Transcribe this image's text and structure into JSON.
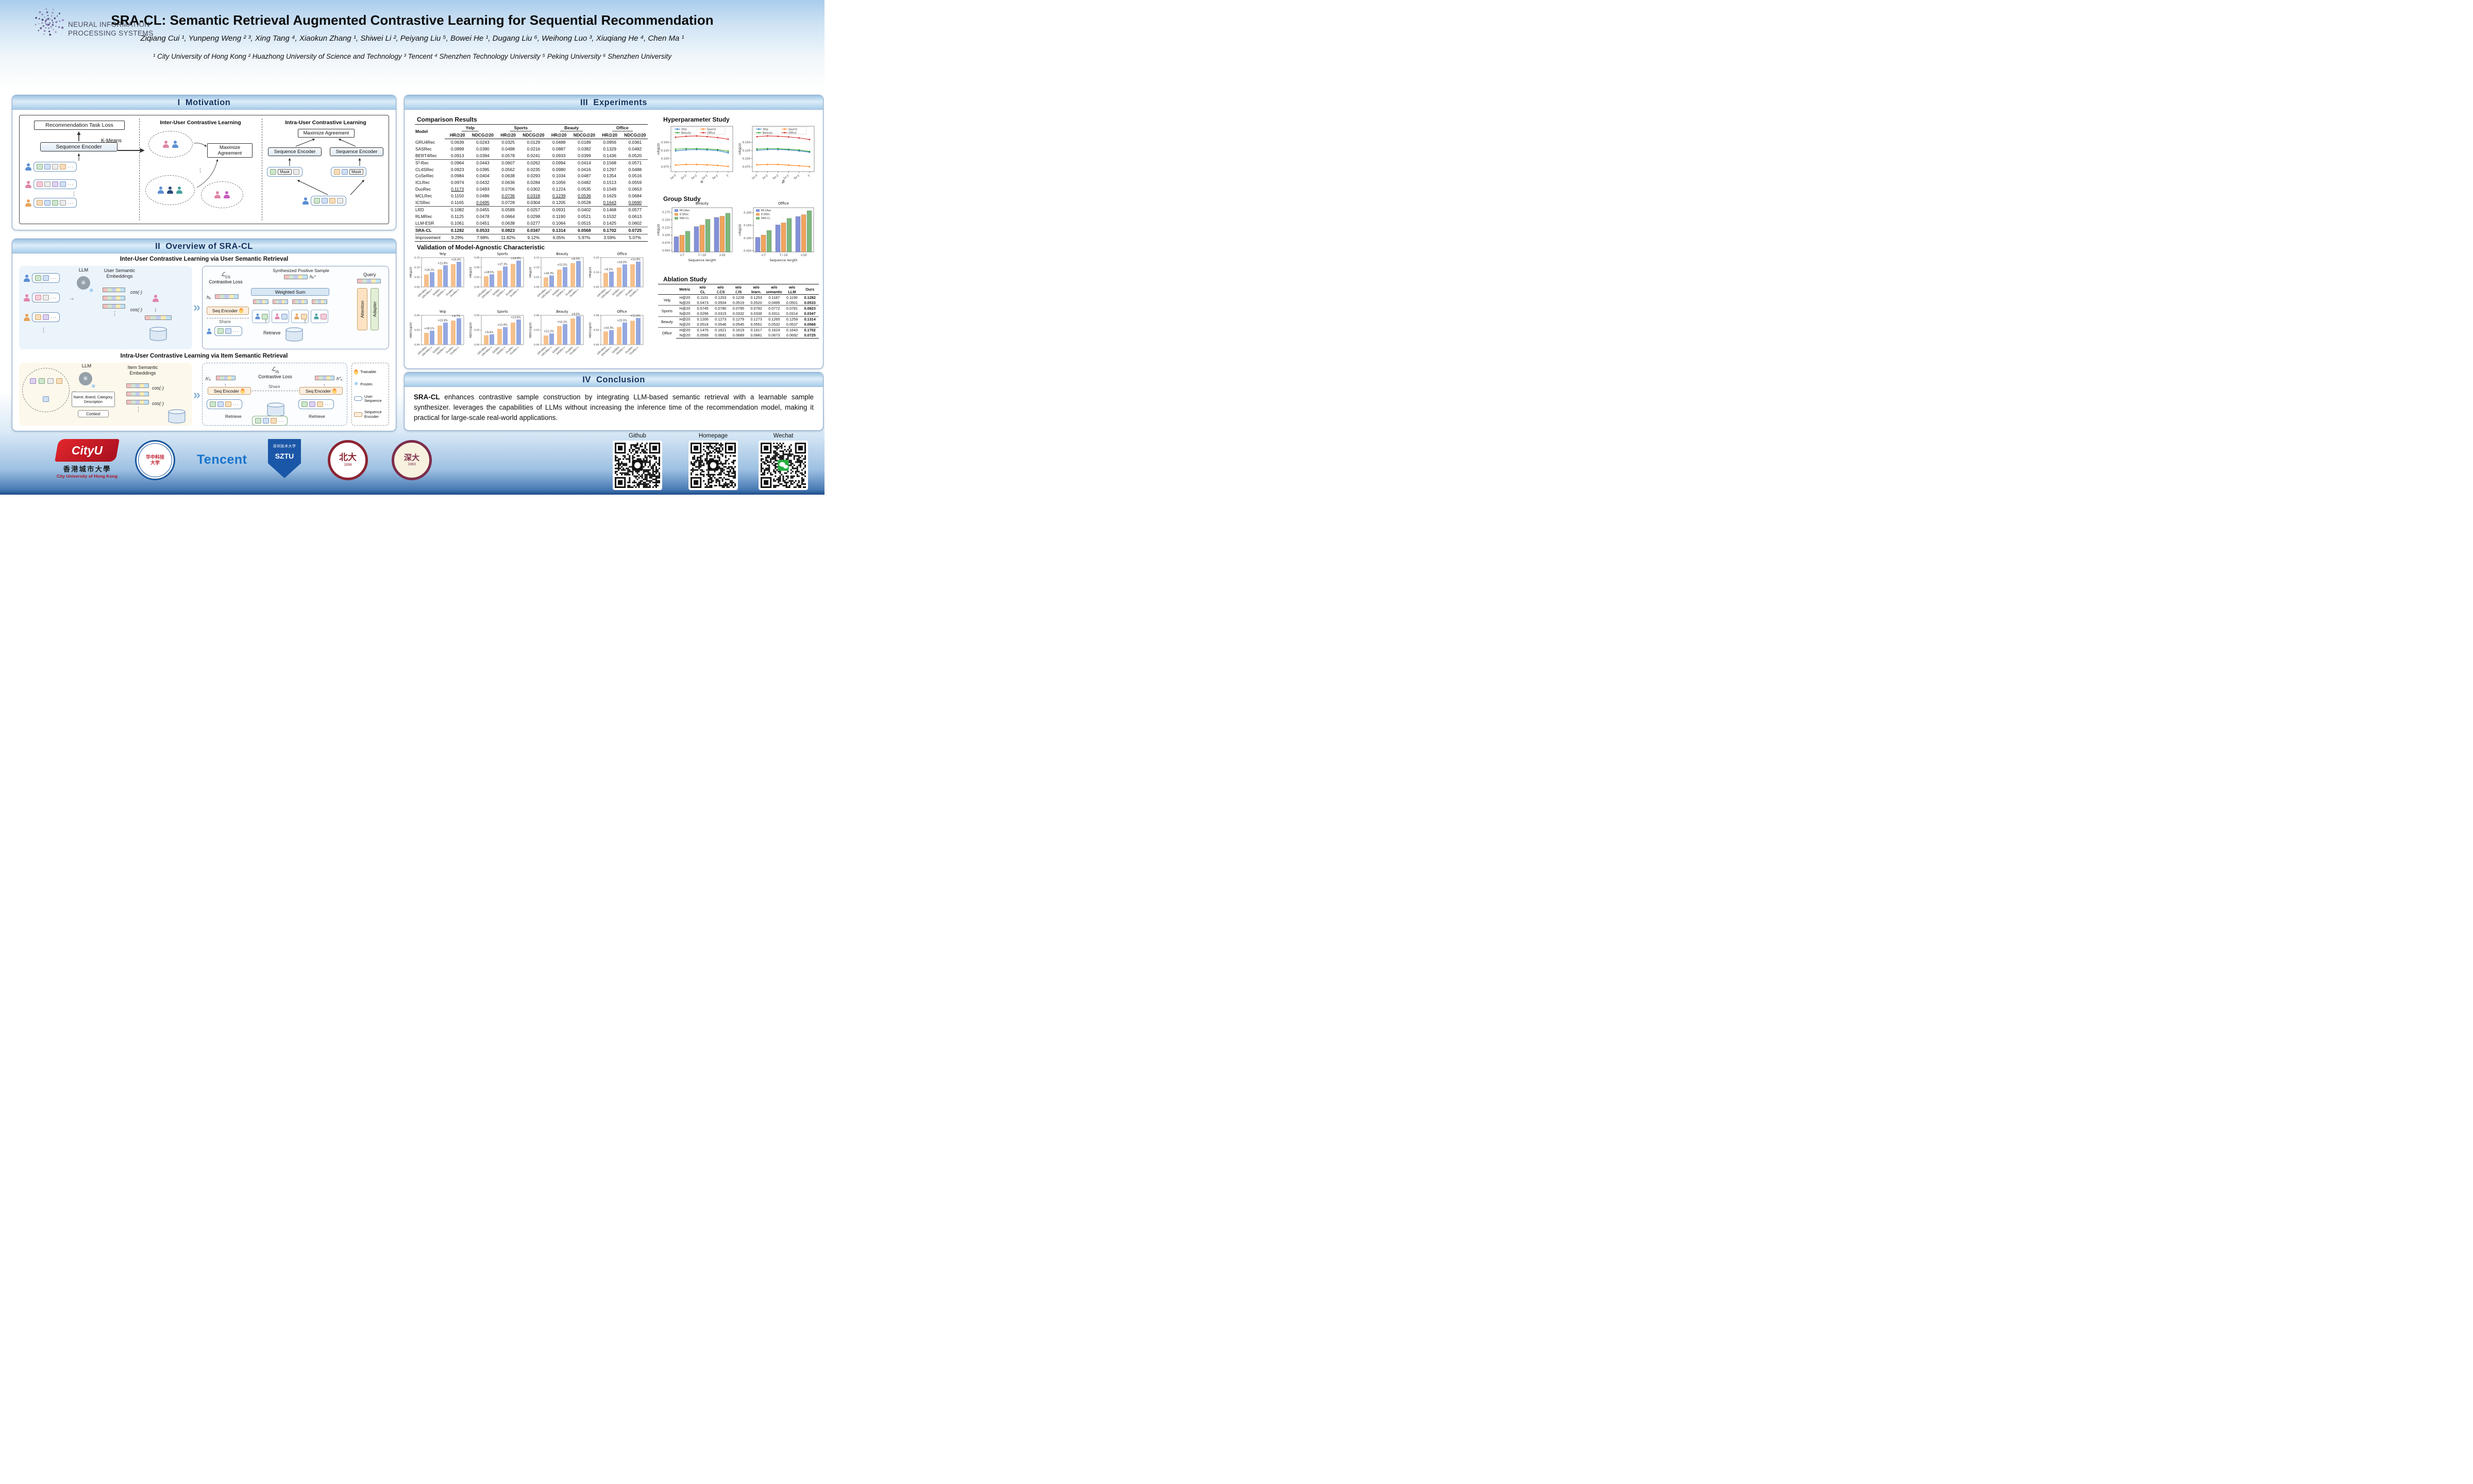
{
  "header": {
    "logo_line1": "NEURAL INFORMATION",
    "logo_line2": "PROCESSING SYSTEMS",
    "title": "SRA-CL: Semantic Retrieval Augmented Contrastive Learning for Sequential Recommendation",
    "authors": "Ziqiang Cui ¹, Yunpeng Weng ² ³, Xing Tang ⁴, Xiaokun Zhang ¹, Shiwei Li ², Peiyang Liu ⁵, Bowei He ¹, Dugang Liu ⁶, Weihong Luo ³, Xiuqiang He ⁴, Chen Ma ¹",
    "affiliations": "¹ City University of Hong Kong   ² Huazhong University of Science and Technology   ³ Tencent   ⁴ Shenzhen Technology University   ⁵ Peking University   ⁶ Shenzhen University"
  },
  "motivation": {
    "title": "I  Motivation",
    "task_loss": "Recommendation Task Loss",
    "encoder": "Sequence Encoder",
    "kmeans": "K-Means",
    "inter_title": "Inter-User Contrastive Learning",
    "intra_title": "Intra-User Contrastive Learning",
    "maximize": "Maximize Agreement",
    "mask": "Mask"
  },
  "overview": {
    "title": "II  Overview of SRA-CL",
    "part_a": {
      "heading": "Inter-User Contrastive Learning via User Semantic Retrieval",
      "llm": "LLM",
      "embeddings_label": "User Semantic Embeddings",
      "cos": "cos(·)",
      "synthesized": "Synthesized Positive Sample",
      "loss_symbol": "ℒ",
      "loss_sub": "CS",
      "loss_label": "Contrastive Loss",
      "weighted_sum": "Weighted Sum",
      "query": "Query",
      "h_u": "hᵤ",
      "h_u_plus": "hᵤ⁺",
      "seq_encoder": "Seq Encoder",
      "share": "Share",
      "retrieve": "Retrieve",
      "attention": "Attention",
      "adapter": "Adapter"
    },
    "part_b": {
      "heading": "Intra-User Contrastive Learning via Item Semantic Retrieval",
      "llm": "LLM",
      "embeddings_label": "Item Semantic Embeddings",
      "meta_box": "Name, Brand, Category, Description",
      "context": "Context",
      "cos": "cos(·)",
      "loss_symbol": "ℒ",
      "loss_sub": "IS",
      "loss_label": "Contrastive Loss",
      "h_u_p1": "h′ᵤ",
      "h_u_p2": "h″ᵤ",
      "seq_encoder": "Seq Encoder",
      "share": "Share",
      "retrieve_left": "Retrieve",
      "retrieve_right": "Retrieve"
    },
    "legend": {
      "trainable": "Trainable",
      "frozen": "Frozen",
      "user_sequence": "User Sequence",
      "sequence_encoder": "Sequence Encoder"
    }
  },
  "experiments": {
    "title": "III  Experiments",
    "comparison": {
      "heading": "Comparison Results",
      "model_header": "Model",
      "datasets": [
        "Yelp",
        "Sports",
        "Beauty",
        "Office"
      ],
      "metrics": [
        "HR@20",
        "NDCG@20"
      ],
      "rows": [
        [
          "GRU4Rec",
          "0.0639",
          "0.0243",
          "0.0325",
          "0.0129",
          "0.0488",
          "0.0189",
          "0.0956",
          "0.0361"
        ],
        [
          "SASRec",
          "0.0899",
          "0.0390",
          "0.0498",
          "0.0216",
          "0.0887",
          "0.0382",
          "0.1329",
          "0.0482"
        ],
        [
          "BERT4Rec",
          "0.0913",
          "0.0394",
          "0.0578",
          "0.0241",
          "0.0933",
          "0.0399",
          "0.1436",
          "0.0520"
        ],
        [
          "S³-Rec",
          "0.0964",
          "0.0443",
          "0.0607",
          "0.0262",
          "0.0994",
          "0.0414",
          "0.1568",
          "0.0571"
        ],
        [
          "CL4SRec",
          "0.0923",
          "0.0395",
          "0.0562",
          "0.0235",
          "0.0980",
          "0.0416",
          "0.1297",
          "0.0488"
        ],
        [
          "CoSeRec",
          "0.0984",
          "0.0404",
          "0.0638",
          "0.0293",
          "0.1034",
          "0.0487",
          "0.1354",
          "0.0516"
        ],
        [
          "ICLRec",
          "0.0974",
          "0.0432",
          "0.0636",
          "0.0284",
          "0.1056",
          "0.0482",
          "0.1513",
          "0.0559"
        ],
        [
          "DuoRec",
          "0.1173",
          "0.0493",
          "0.0706",
          "0.0302",
          "0.1224",
          "0.0535",
          "0.1549",
          "0.0653"
        ],
        [
          "MCLRec",
          "0.1150",
          "0.0486",
          "0.0736",
          "0.0318",
          "0.1239",
          "0.0536",
          "0.1629",
          "0.0684"
        ],
        [
          "ICSRec",
          "0.1165",
          "0.0495",
          "0.0728",
          "0.0304",
          "0.1205",
          "0.0528",
          "0.1643",
          "0.0690"
        ],
        [
          "LRD",
          "0.1082",
          "0.0455",
          "0.0589",
          "0.0257",
          "0.0931",
          "0.0402",
          "0.1468",
          "0.0577"
        ],
        [
          "RLMRec",
          "0.1125",
          "0.0478",
          "0.0664",
          "0.0298",
          "0.1190",
          "0.0521",
          "0.1532",
          "0.0613"
        ],
        [
          "LLM-ESR",
          "0.1061",
          "0.0451",
          "0.0638",
          "0.0277",
          "0.1064",
          "0.0515",
          "0.1425",
          "0.0602"
        ],
        [
          "SRA-CL",
          "0.1282",
          "0.0533",
          "0.0823",
          "0.0347",
          "0.1314",
          "0.0568",
          "0.1702",
          "0.0725"
        ],
        [
          "Improvement",
          "9.29%",
          "7.68%",
          "11.82%",
          "9.12%",
          "6.05%",
          "5.97%",
          "3.59%",
          "5.07%"
        ]
      ],
      "group_breaks": [
        3,
        10,
        13,
        14
      ],
      "bold_row": "SRA-CL",
      "underlined": [
        [
          7,
          0
        ],
        [
          9,
          1
        ],
        [
          8,
          2
        ],
        [
          8,
          3
        ],
        [
          8,
          4
        ],
        [
          8,
          5
        ],
        [
          9,
          6
        ],
        [
          9,
          7
        ]
      ]
    },
    "hyper": {
      "heading": "Hyperparameter Study",
      "ylabel": "HR@20",
      "legend": [
        "Yelp",
        "Sports",
        "Beauty",
        "Office"
      ],
      "colors": [
        "#1f77b4",
        "#ff7f0e",
        "#2ca02c",
        "#d62728"
      ],
      "ymin": 0.06,
      "ymax": 0.2,
      "yticks": [
        0.075,
        0.1,
        0.125,
        0.15
      ],
      "charts": [
        {
          "xlabel": "α",
          "xticks": [
            "1e-3",
            "1e-2",
            "5e-2",
            "1e-1",
            "5e-1",
            "1"
          ],
          "series": [
            {
              "name": "Yelp",
              "values": [
                0.124,
                0.127,
                0.128,
                0.127,
                0.125,
                0.118
              ]
            },
            {
              "name": "Sports",
              "values": [
                0.08,
                0.082,
                0.082,
                0.081,
                0.079,
                0.076
              ]
            },
            {
              "name": "Beauty",
              "values": [
                0.129,
                0.131,
                0.131,
                0.13,
                0.128,
                0.123
              ]
            },
            {
              "name": "Office",
              "values": [
                0.166,
                0.169,
                0.17,
                0.168,
                0.165,
                0.16
              ]
            }
          ]
        },
        {
          "xlabel": "β",
          "xticks": [
            "1e-3",
            "1e-2",
            "5e-2",
            "1e-1",
            "5e-1",
            "1"
          ],
          "series": [
            {
              "name": "Yelp",
              "values": [
                0.126,
                0.128,
                0.128,
                0.127,
                0.124,
                0.12
              ]
            },
            {
              "name": "Sports",
              "values": [
                0.081,
                0.082,
                0.082,
                0.08,
                0.078,
                0.075
              ]
            },
            {
              "name": "Beauty",
              "values": [
                0.13,
                0.131,
                0.131,
                0.129,
                0.127,
                0.122
              ]
            },
            {
              "name": "Office",
              "values": [
                0.168,
                0.17,
                0.169,
                0.167,
                0.164,
                0.159
              ]
            }
          ]
        }
      ]
    },
    "group_study": {
      "heading": "Group Study",
      "ylabel": "HR@20",
      "xlabel": "Sequence length",
      "categories": [
        "<7",
        "7~10",
        ">10"
      ],
      "legend": [
        "MCLRec",
        "ICSRec",
        "SRA-CL"
      ],
      "colors": [
        "#8491d8",
        "#f2a45c",
        "#7cb87c"
      ],
      "charts": [
        {
          "title": "Beauty",
          "ymin": 0.045,
          "ymax": 0.19,
          "yticks": [
            0.05,
            0.075,
            0.1,
            0.125,
            0.15,
            0.175
          ],
          "series": [
            [
              0.095,
              0.128,
              0.158
            ],
            [
              0.1,
              0.133,
              0.162
            ],
            [
              0.113,
              0.152,
              0.172
            ]
          ]
        },
        {
          "title": "Office",
          "ymin": 0.045,
          "ymax": 0.22,
          "yticks": [
            0.05,
            0.1,
            0.15,
            0.2
          ],
          "series": [
            [
              0.103,
              0.152,
              0.185
            ],
            [
              0.112,
              0.16,
              0.192
            ],
            [
              0.13,
              0.178,
              0.208
            ]
          ]
        }
      ]
    },
    "agnostic": {
      "heading": "Validation of Model-Agnostic Characteristic",
      "xcats": [
        "GRU4Rec",
        "GRU4Rec+",
        "SASRec",
        "SASRec+",
        "DuoRec",
        "DuoRec+"
      ],
      "colors": [
        "#f5c08c",
        "#94a8e0"
      ],
      "rows": [
        {
          "ylabel": "HR@20",
          "charts": [
            {
              "title": "Yelp",
              "ymax": 0.15,
              "yticks": [
                0,
                0.05,
                0.1,
                0.15
              ],
              "values": [
                0.064,
                0.076,
                0.09,
                0.111,
                0.117,
                0.129
              ],
              "pcts": [
                "+18.2%",
                "+22.8%",
                "+10.4%"
              ]
            },
            {
              "title": "Sports",
              "ymax": 0.09,
              "yticks": [
                0,
                0.03,
                0.06,
                0.09
              ],
              "values": [
                0.033,
                0.039,
                0.05,
                0.063,
                0.071,
                0.081
              ],
              "pcts": [
                "+18.5%",
                "+27.3%",
                "+14.9%"
              ]
            },
            {
              "title": "Beauty",
              "ymax": 0.15,
              "yticks": [
                0,
                0.05,
                0.1,
                0.15
              ],
              "values": [
                0.049,
                0.059,
                0.089,
                0.102,
                0.122,
                0.133
              ],
              "pcts": [
                "+20.3%",
                "+15.5%",
                "+8.3%"
              ]
            },
            {
              "title": "Office",
              "ymax": 0.2,
              "yticks": [
                0,
                0.1,
                0.2
              ],
              "values": [
                0.096,
                0.105,
                0.133,
                0.154,
                0.155,
                0.173
              ],
              "pcts": [
                "+9.3%",
                "+16.0%",
                "+11.8%"
              ]
            }
          ]
        },
        {
          "ylabel": "NDCG@20",
          "charts": [
            {
              "title": "Yelp",
              "ymax": 0.06,
              "yticks": [
                0,
                0.03,
                0.06
              ],
              "values": [
                0.0243,
                0.0287,
                0.039,
                0.0452,
                0.0493,
                0.0541
              ],
              "pcts": [
                "+18.1%",
                "+15.9%",
                "+9.7%"
              ]
            },
            {
              "title": "Sports",
              "ymax": 0.04,
              "yticks": [
                0,
                0.02,
                0.04
              ],
              "values": [
                0.0129,
                0.0141,
                0.0216,
                0.0241,
                0.0302,
                0.0343
              ],
              "pcts": [
                "+9.4%",
                "+11.6%",
                "+13.6%"
              ]
            },
            {
              "title": "Beauty",
              "ymax": 0.06,
              "yticks": [
                0,
                0.03,
                0.06
              ],
              "values": [
                0.0189,
                0.0229,
                0.0382,
                0.0421,
                0.0535,
                0.0584
              ],
              "pcts": [
                "+21.2%",
                "+10.2%",
                "+9.2%"
              ]
            },
            {
              "title": "Office",
              "ymax": 0.08,
              "yticks": [
                0,
                0.04,
                0.08
              ],
              "values": [
                0.0361,
                0.0398,
                0.0482,
                0.0605,
                0.0653,
                0.0729
              ],
              "pcts": [
                "+10.3%",
                "+25.5%",
                "+11.6%"
              ]
            }
          ]
        }
      ]
    },
    "ablation": {
      "heading": "Ablation Study",
      "col_headers": [
        [
          "",
          ""
        ],
        [
          "Metric",
          ""
        ],
        [
          "w/o",
          "CL"
        ],
        [
          "w/o",
          "ℒCS"
        ],
        [
          "w/o",
          "ℒIS"
        ],
        [
          "w/o",
          "learn."
        ],
        [
          "w/o",
          "semantic"
        ],
        [
          "w/o",
          "LLM"
        ],
        [
          "Ours",
          ""
        ]
      ],
      "rows": [
        {
          "dataset": "Yelp",
          "lines": [
            [
              "H@20",
              "0.1101",
              "0.1203",
              "0.1228",
              "0.1253",
              "0.1187",
              "0.1190",
              "0.1282"
            ],
            [
              "N@20",
              "0.0473",
              "0.0504",
              "0.0519",
              "0.0520",
              "0.0495",
              "0.0501",
              "0.0533"
            ]
          ]
        },
        {
          "dataset": "Sports",
          "lines": [
            [
              "H@20",
              "0.0745",
              "0.0780",
              "0.0795",
              "0.0792",
              "0.0772",
              "0.0781",
              "0.0823"
            ],
            [
              "N@20",
              "0.0296",
              "0.0315",
              "0.0332",
              "0.0336",
              "0.0311",
              "0.0314",
              "0.0347"
            ]
          ]
        },
        {
          "dataset": "Beauty",
          "lines": [
            [
              "H@20",
              "0.1206",
              "0.1273",
              "0.1279",
              "0.1273",
              "0.1265",
              "0.1259",
              "0.1314"
            ],
            [
              "N@20",
              "0.0518",
              "0.0546",
              "0.0545",
              "0.0551",
              "0.0532",
              "0.0537",
              "0.0568"
            ]
          ]
        },
        {
          "dataset": "Office",
          "lines": [
            [
              "H@20",
              "0.1476",
              "0.1621",
              "0.1619",
              "0.1617",
              "0.1624",
              "0.1643",
              "0.1702"
            ],
            [
              "N@20",
              "0.0599",
              "0.0691",
              "0.0689",
              "0.0681",
              "0.0673",
              "0.0692",
              "0.0725"
            ]
          ]
        }
      ]
    }
  },
  "conclusion": {
    "title": "IV  Conclusion",
    "lead": "SRA-CL",
    "text": " enhances contrastive sample construction by integrating LLM-based semantic retrieval with a learnable sample synthesizer. leverages the capabilities of LLMs without increasing the inference time of the recommendation model, making it practical for large-scale real-world applications."
  },
  "footer": {
    "qr": [
      {
        "label": "Github"
      },
      {
        "label": "Homepage"
      },
      {
        "label": "Wechat"
      }
    ],
    "cityu": {
      "wordmark": "CityU",
      "zh": "香港城市大學",
      "en": "City University of Hong Kong"
    },
    "hust": {
      "zh": "华中科技大学"
    },
    "tencent": {
      "wordmark": "Tencent"
    },
    "sztu": {
      "zh": "深圳技术大学",
      "abbr": "SZTU"
    },
    "pku": {
      "zh": "北大",
      "year": "1898"
    },
    "szu": {
      "zh": "深大",
      "year": "1983"
    }
  }
}
